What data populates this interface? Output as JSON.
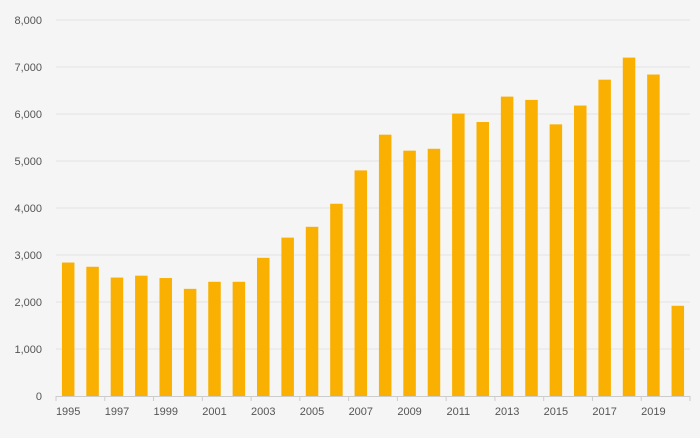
{
  "chart_data": {
    "type": "bar",
    "title": "",
    "xlabel": "",
    "ylabel": "",
    "categories": [
      "1995",
      "1996",
      "1997",
      "1998",
      "1999",
      "2000",
      "2001",
      "2002",
      "2003",
      "2004",
      "2005",
      "2006",
      "2007",
      "2008",
      "2009",
      "2010",
      "2011",
      "2012",
      "2013",
      "2014",
      "2015",
      "2016",
      "2017",
      "2018",
      "2019",
      "2020"
    ],
    "x_tick_labels": [
      "1995",
      "1997",
      "1999",
      "2001",
      "2003",
      "2005",
      "2007",
      "2009",
      "2011",
      "2013",
      "2015",
      "2017",
      "2019"
    ],
    "values": [
      2840,
      2750,
      2520,
      2560,
      2510,
      2280,
      2430,
      2430,
      2940,
      3370,
      3600,
      4090,
      4800,
      5560,
      5220,
      5260,
      6010,
      5830,
      6370,
      6300,
      5780,
      6180,
      6730,
      7200,
      6840,
      1920
    ],
    "ylim": [
      0,
      8000
    ],
    "y_ticks": [
      0,
      1000,
      2000,
      3000,
      4000,
      5000,
      6000,
      7000,
      8000
    ],
    "y_tick_labels": [
      "0",
      "1,000",
      "2,000",
      "3,000",
      "4,000",
      "5,000",
      "6,000",
      "7,000",
      "8,000"
    ],
    "grid": true,
    "legend": "none",
    "bar_color": "#f9b000",
    "grid_color": "#e2e2e2",
    "axis_color": "#cccccc",
    "background": "#f5f5f5"
  }
}
